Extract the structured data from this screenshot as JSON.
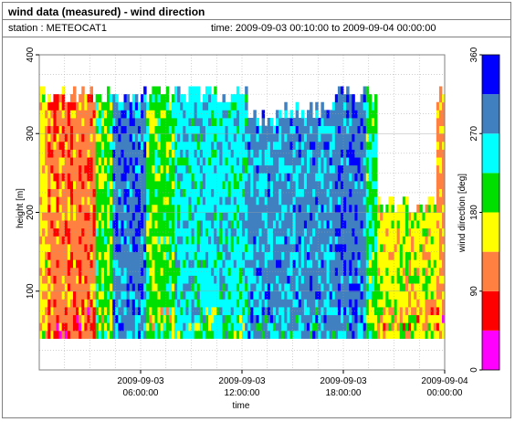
{
  "header": {
    "title": "wind data (measured) - wind direction",
    "station": "station : METEOCAT1",
    "time_range": "time: 2009-09-03 00:10:00 to 2009-09-04 00:00:00"
  },
  "chart_data": {
    "type": "heatmap",
    "title": "wind data (measured) - wind direction",
    "xlabel": "time",
    "ylabel": "height [m]",
    "colorbar_label": "wind direction [deg]",
    "xlim": [
      0,
      24
    ],
    "ylim": [
      0,
      400
    ],
    "x_ticks": [
      {
        "value": 6,
        "date": "2009-09-03",
        "time": "06:00:00"
      },
      {
        "value": 12,
        "date": "2009-09-03",
        "time": "12:00:00"
      },
      {
        "value": 18,
        "date": "2009-09-03",
        "time": "18:00:00"
      },
      {
        "value": 24,
        "date": "2009-09-04",
        "time": "00:00:00"
      }
    ],
    "y_ticks": [
      "100",
      "200",
      "300",
      "400"
    ],
    "grid": true,
    "colorbar": {
      "ticks": [
        "0",
        "90",
        "180",
        "270",
        "360"
      ],
      "bins": [
        {
          "from": 0,
          "to": 45,
          "color": "#ff00ff"
        },
        {
          "from": 45,
          "to": 90,
          "color": "#ff0000"
        },
        {
          "from": 90,
          "to": 135,
          "color": "#ff8040"
        },
        {
          "from": 135,
          "to": 180,
          "color": "#ffff00"
        },
        {
          "from": 180,
          "to": 225,
          "color": "#00e000"
        },
        {
          "from": 225,
          "to": 270,
          "color": "#00ffff"
        },
        {
          "from": 270,
          "to": 315,
          "color": "#4080c0"
        },
        {
          "from": 315,
          "to": 360,
          "color": "#0000ff"
        }
      ]
    },
    "height_range_m": [
      40,
      360
    ],
    "time_step_h": 0.1667,
    "phases": [
      {
        "from_h": 0.0,
        "to_h": 0.5,
        "dir_deg": 150,
        "max_height_m": 360
      },
      {
        "from_h": 0.5,
        "to_h": 3.3,
        "dir_deg": 110,
        "max_height_m": 360
      },
      {
        "from_h": 3.3,
        "to_h": 4.2,
        "dir_deg": 200,
        "max_height_m": 360
      },
      {
        "from_h": 4.2,
        "to_h": 6.3,
        "dir_deg": 295,
        "max_height_m": 360
      },
      {
        "from_h": 6.3,
        "to_h": 8.0,
        "dir_deg": 200,
        "max_height_m": 360
      },
      {
        "from_h": 8.0,
        "to_h": 10.5,
        "dir_deg": 250,
        "max_height_m": 360
      },
      {
        "from_h": 10.5,
        "to_h": 12.2,
        "dir_deg": 248,
        "max_height_m": 360
      },
      {
        "from_h": 12.2,
        "to_h": 14.4,
        "dir_deg": 285,
        "max_height_m": 330
      },
      {
        "from_h": 14.4,
        "to_h": 17.5,
        "dir_deg": 285,
        "max_height_m": 340
      },
      {
        "from_h": 17.5,
        "to_h": 19.3,
        "dir_deg": 300,
        "max_height_m": 360
      },
      {
        "from_h": 19.3,
        "to_h": 20.0,
        "dir_deg": 210,
        "max_height_m": 360
      },
      {
        "from_h": 20.0,
        "to_h": 23.5,
        "dir_deg": 160,
        "max_height_m": 220
      },
      {
        "from_h": 23.5,
        "to_h": 24.0,
        "dir_deg": 130,
        "max_height_m": 360
      }
    ]
  }
}
